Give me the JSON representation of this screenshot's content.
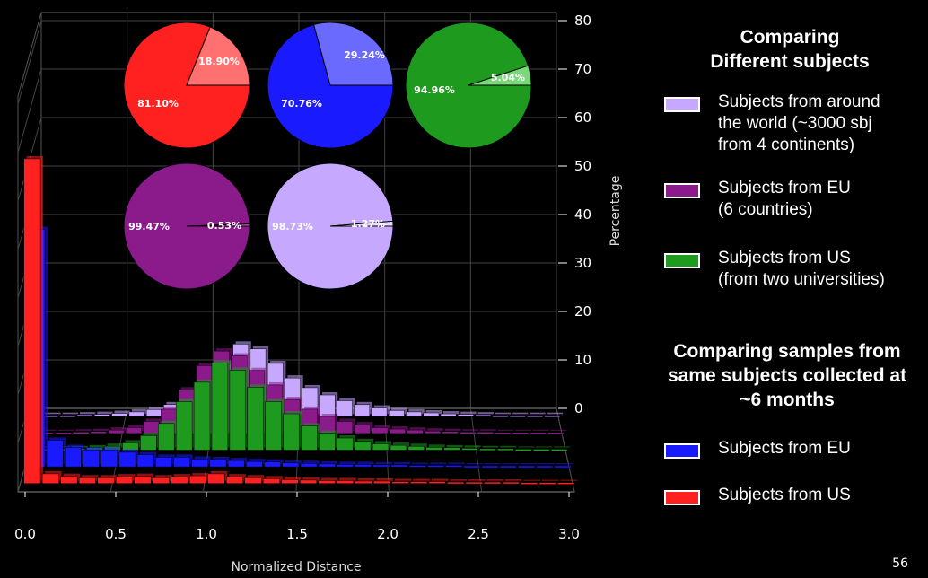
{
  "chart_data": {
    "type": "bar",
    "xlabel": "Normalized Distance",
    "ylabel": "Percentage",
    "x_ticks": [
      "0.0",
      "0.5",
      "1.0",
      "1.5",
      "2.0",
      "2.5",
      "3.0"
    ],
    "y_ticks": [
      "0",
      "10",
      "20",
      "30",
      "40",
      "50",
      "60",
      "70",
      "80"
    ],
    "xlim": [
      0,
      3.0
    ],
    "zlim": [
      0,
      80
    ],
    "series": [
      {
        "key": "us6",
        "color": "#ff2020",
        "values": [
          67,
          2,
          1.5,
          1.2,
          1.2,
          1.4,
          1.5,
          1.2,
          1.4,
          1.6,
          2,
          1.4,
          1.2,
          1,
          0.8,
          0.7,
          0.6,
          0.6,
          0.5,
          0.5,
          0.4,
          0.4,
          0.4,
          0.3,
          0.3,
          0.3,
          0.3,
          0.2,
          0.2,
          0.2
        ]
      },
      {
        "key": "eu6",
        "color": "#1a1aff",
        "values": [
          49,
          5.5,
          4,
          3.5,
          3.5,
          3,
          2.5,
          2,
          2,
          1.6,
          1.5,
          1.3,
          1.1,
          1,
          0.8,
          0.7,
          0.6,
          0.5,
          0.5,
          0.4,
          0.4,
          0.3,
          0.3,
          0.3,
          0.2,
          0.2,
          0.2,
          0.2,
          0.2,
          0.2
        ]
      },
      {
        "key": "us",
        "color": "#1e9a1e",
        "values": [
          0.2,
          0.2,
          0.3,
          0.5,
          0.8,
          1.5,
          3,
          5.5,
          10,
          14,
          18,
          16.5,
          13,
          10,
          7.5,
          5,
          3.5,
          2.5,
          1.8,
          1.3,
          1,
          0.8,
          0.6,
          0.5,
          0.4,
          0.3,
          0.3,
          0.2,
          0.2,
          0.2
        ]
      },
      {
        "key": "eu",
        "color": "#8b1a8b",
        "values": [
          0.2,
          0.2,
          0.3,
          0.4,
          0.7,
          1.2,
          2.5,
          5,
          9,
          14,
          17,
          16,
          13,
          10,
          7,
          5,
          3.5,
          2.5,
          1.8,
          1.2,
          0.9,
          0.7,
          0.5,
          0.4,
          0.3,
          0.3,
          0.2,
          0.2,
          0.2,
          0.2
        ]
      },
      {
        "key": "world",
        "color": "#c6a8ff",
        "values": [
          0.3,
          0.3,
          0.4,
          0.5,
          0.7,
          1,
          1.5,
          2.5,
          4,
          7,
          11,
          15,
          14,
          11,
          8,
          6,
          4.5,
          3.3,
          2.5,
          1.8,
          1.3,
          1,
          0.8,
          0.6,
          0.5,
          0.4,
          0.3,
          0.3,
          0.3,
          0.3
        ]
      }
    ],
    "pies": [
      {
        "key": "us6",
        "color": "#ff2020",
        "light": "#ff7070",
        "slices": [
          81.1,
          18.9
        ],
        "labels": [
          "81.10%",
          "18.90%"
        ]
      },
      {
        "key": "eu6",
        "color": "#1a1aff",
        "light": "#6a6aff",
        "slices": [
          70.76,
          29.24
        ],
        "labels": [
          "70.76%",
          "29.24%"
        ]
      },
      {
        "key": "us",
        "color": "#1e9a1e",
        "light": "#7ad87a",
        "slices": [
          94.96,
          5.04
        ],
        "labels": [
          "94.96%",
          "5.04%"
        ]
      },
      {
        "key": "eu",
        "color": "#8b1a8b",
        "light": "#c070c0",
        "slices": [
          99.47,
          0.53
        ],
        "labels": [
          "99.47%",
          "0.53%"
        ]
      },
      {
        "key": "world",
        "color": "#c6a8ff",
        "light": "#e8dcff",
        "slices": [
          98.73,
          1.27
        ],
        "labels": [
          "98.73%",
          "1.27%"
        ]
      }
    ]
  },
  "legend": {
    "heading1": "Comparing\nDifferent subjects",
    "item_world": "Subjects from around\nthe world (~3000 sbj\nfrom 4 continents)",
    "item_eu": "Subjects from EU\n(6 countries)",
    "item_us": "Subjects from US\n(from two universities)",
    "heading2": "Comparing samples from\nsame subjects collected at\n~6 months",
    "item_eu6": "Subjects from EU",
    "item_us6": "Subjects from US"
  },
  "colors": {
    "world": "#c6a8ff",
    "eu": "#8b1a8b",
    "us": "#1e9a1e",
    "eu6": "#1a1aff",
    "us6": "#ff2020"
  },
  "page_number": "56"
}
